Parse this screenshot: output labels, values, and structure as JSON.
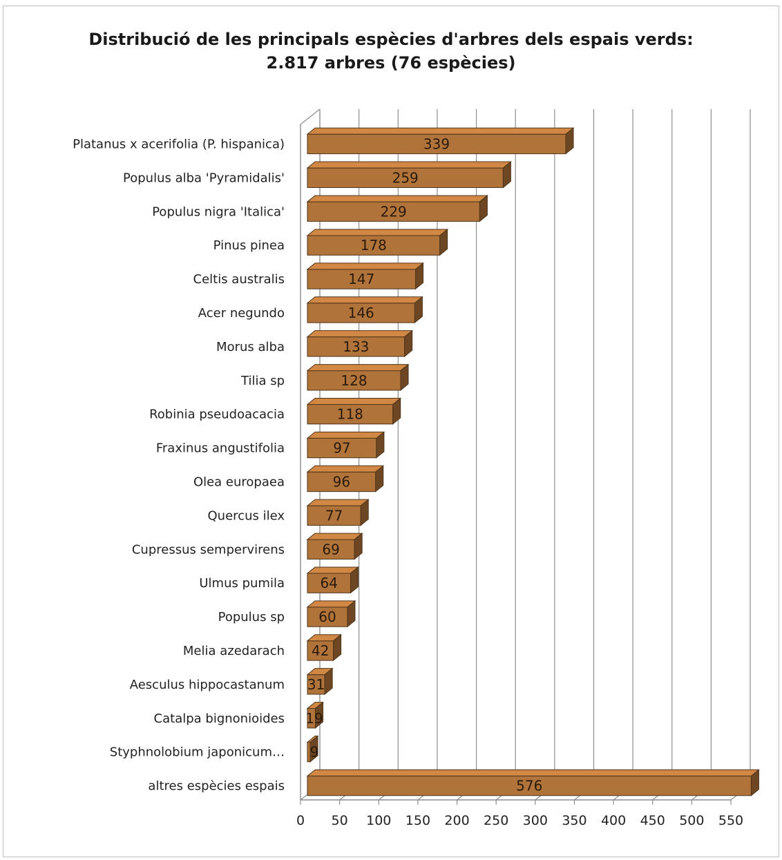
{
  "chart_data": {
    "type": "bar",
    "orientation": "horizontal",
    "style": "3d",
    "title": "Distribució de les principals espècies d'arbres dels espais verds:",
    "subtitle": "2.817 arbres (76 espècies)",
    "xlabel": "",
    "ylabel": "",
    "xlim": [
      0,
      550
    ],
    "x_ticks": [
      "0",
      "50",
      "100",
      "150",
      "200",
      "250",
      "300",
      "350",
      "400",
      "450",
      "500",
      "550"
    ],
    "grid": true,
    "legend": "none",
    "bar_color": "#b0733a",
    "categories": [
      "Platanus x acerifolia (P. hispanica)",
      "Populus alba 'Pyramidalis'",
      "Populus nigra 'Italica'",
      "Pinus pinea",
      "Celtis australis",
      "Acer negundo",
      "Morus alba",
      "Tilia sp",
      "Robinia pseudoacacia",
      "Fraxinus angustifolia",
      "Olea europaea",
      "Quercus ilex",
      "Cupressus sempervirens",
      "Ulmus pumila",
      "Populus sp",
      "Melia azedarach",
      "Aesculus hippocastanum",
      "Catalpa bignonioides",
      "Styphnolobium japonicum…",
      "altres espècies espais"
    ],
    "values": [
      339,
      259,
      229,
      178,
      147,
      146,
      133,
      128,
      118,
      97,
      96,
      77,
      69,
      64,
      60,
      42,
      31,
      19,
      9,
      576
    ],
    "data_labels": [
      "339",
      "259",
      "229",
      "178",
      "147",
      "146",
      "133",
      "128",
      "118",
      "97",
      "96",
      "77",
      "69",
      "64",
      "60",
      "42",
      "31",
      "19",
      "9",
      "576"
    ]
  }
}
